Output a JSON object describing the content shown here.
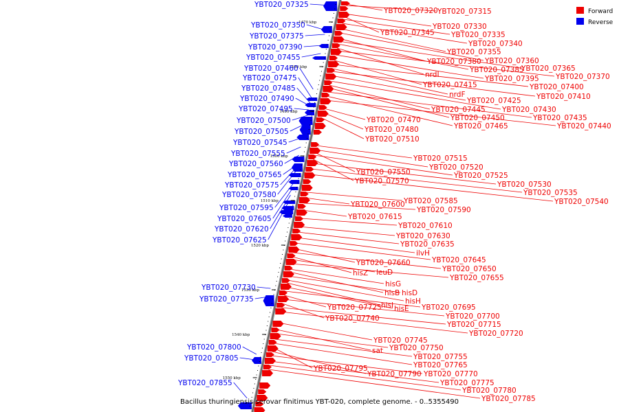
{
  "legend": [
    {
      "label": "Forward",
      "color": "#ee0000"
    },
    {
      "label": "Reverse",
      "color": "#0000ee"
    }
  ],
  "caption": "Bacillus thuringiensis serovar finitimus YBT-020, complete genome. - 0..5355490",
  "ticks": [
    "1470 kbp",
    "1480 kbp",
    "1490 kbp",
    "1500 kbp",
    "1510 kbp",
    "1520 kbp",
    "1530 kbp",
    "1540 kbp",
    "1550 kbp"
  ],
  "reverse_labels": [
    "YBT020_07325",
    "YBT020_07350",
    "YBT020_07375",
    "YBT020_07390",
    "YBT020_07455",
    "YBT020_07460",
    "YBT020_07475",
    "YBT020_07485",
    "YBT020_07490",
    "YBT020_07495",
    "YBT020_07500",
    "YBT020_07505",
    "YBT020_07545",
    "YBT020_07555",
    "YBT020_07560",
    "YBT020_07565",
    "YBT020_07575",
    "YBT020_07580",
    "YBT020_07595",
    "YBT020_07605",
    "YBT020_07620",
    "YBT020_07625",
    "YBT020_07730",
    "YBT020_07735",
    "YBT020_07800",
    "YBT020_07805",
    "YBT020_07855"
  ],
  "forward_labels": [
    "YBT020_07320",
    "YBT020_07315",
    "YBT020_07330",
    "YBT020_07345",
    "YBT020_07335",
    "YBT020_07340",
    "YBT020_07355",
    "YBT020_07360",
    "YBT020_07380",
    "YBT020_07365",
    "YBT020_07385",
    "nrdI",
    "YBT020_07370",
    "YBT020_07395",
    "YBT020_07415",
    "YBT020_07400",
    "nrdF",
    "YBT020_07410",
    "YBT020_07425",
    "YBT020_07430",
    "YBT020_07445",
    "YBT020_07450",
    "YBT020_07435",
    "YBT020_07465",
    "YBT020_07440",
    "YBT020_07470",
    "YBT020_07480",
    "YBT020_07510",
    "YBT020_07515",
    "YBT020_07520",
    "YBT020_07550",
    "YBT020_07525",
    "YBT020_07570",
    "YBT020_07530",
    "YBT020_07535",
    "YBT020_07540",
    "YBT020_07585",
    "YBT020_07600",
    "YBT020_07590",
    "YBT020_07615",
    "YBT020_07610",
    "YBT020_07630",
    "YBT020_07635",
    "ilvH",
    "YBT020_07645",
    "YBT020_07660",
    "YBT020_07650",
    "hisZ",
    "leuD",
    "YBT020_07655",
    "hisG",
    "hisB",
    "hisD",
    "hisH",
    "hisI",
    "hisE",
    "YBT020_07695",
    "YBT020_07725",
    "YBT020_07700",
    "YBT020_07740",
    "YBT020_07715",
    "YBT020_07720",
    "YBT020_07745",
    "sat",
    "YBT020_07750",
    "YBT020_07755",
    "YBT020_07765",
    "YBT020_07795",
    "YBT020_07790",
    "YBT020_07770",
    "YBT020_07775",
    "YBT020_07780",
    "YBT020_07785"
  ]
}
